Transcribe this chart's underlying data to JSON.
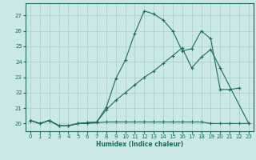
{
  "xlabel": "Humidex (Indice chaleur)",
  "xlim": [
    -0.5,
    23.5
  ],
  "ylim": [
    19.5,
    27.8
  ],
  "yticks": [
    20,
    21,
    22,
    23,
    24,
    25,
    26,
    27
  ],
  "xticks": [
    0,
    1,
    2,
    3,
    4,
    5,
    6,
    7,
    8,
    9,
    10,
    11,
    12,
    13,
    14,
    15,
    16,
    17,
    18,
    19,
    20,
    21,
    22,
    23
  ],
  "background_color": "#c9e8e6",
  "line_color": "#1e6b5e",
  "grid_color": "#a8ccc8",
  "line1_x": [
    0,
    1,
    2,
    3,
    4,
    5,
    6,
    7,
    8,
    9,
    10,
    11,
    12,
    13,
    14,
    15,
    16,
    17,
    18,
    19,
    20,
    21,
    22,
    23
  ],
  "line1_y": [
    20.2,
    20.0,
    20.2,
    19.85,
    19.85,
    20.0,
    20.0,
    20.05,
    20.1,
    20.1,
    20.1,
    20.1,
    20.1,
    20.1,
    20.1,
    20.1,
    20.1,
    20.1,
    20.1,
    20.0,
    20.0,
    20.0,
    20.0,
    20.0
  ],
  "line2_x": [
    0,
    1,
    2,
    3,
    4,
    5,
    6,
    7,
    8,
    9,
    10,
    11,
    12,
    13,
    14,
    15,
    16,
    17,
    18,
    19,
    20,
    21,
    22
  ],
  "line2_y": [
    20.2,
    20.0,
    20.2,
    19.85,
    19.85,
    20.0,
    20.05,
    20.1,
    21.05,
    22.9,
    24.1,
    25.85,
    27.3,
    27.1,
    26.7,
    26.0,
    24.7,
    24.85,
    26.0,
    25.5,
    22.2,
    22.2,
    22.3
  ],
  "line3_x": [
    0,
    1,
    2,
    3,
    4,
    5,
    6,
    7,
    8,
    9,
    10,
    11,
    12,
    13,
    14,
    15,
    16,
    17,
    18,
    19,
    20,
    23
  ],
  "line3_y": [
    20.2,
    20.0,
    20.2,
    19.85,
    19.85,
    20.0,
    20.05,
    20.1,
    20.9,
    21.5,
    22.0,
    22.5,
    23.0,
    23.4,
    23.9,
    24.4,
    24.9,
    23.6,
    24.3,
    24.8,
    23.6,
    20.0
  ]
}
